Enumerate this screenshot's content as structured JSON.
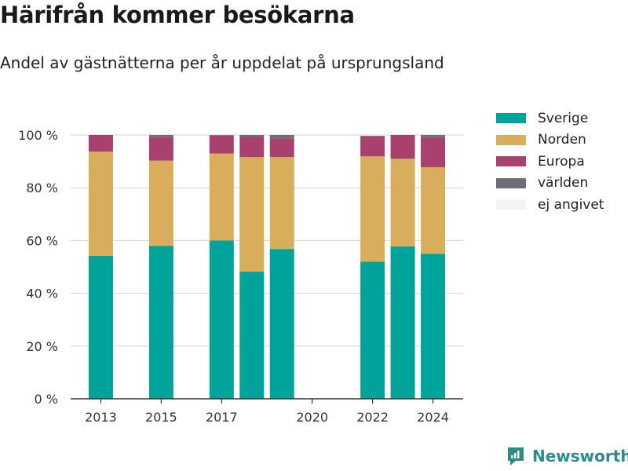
{
  "title": "Härifrån kommer besökarna",
  "subtitle": "Andel av gästnätterna per år uppdelat på ursprungsland",
  "brand": {
    "label": "Newsworthy",
    "icon": "newsworthy-logo-icon"
  },
  "chart_data": {
    "type": "bar",
    "stacked": true,
    "categories": [
      "2013",
      "2015",
      "2017",
      "2018",
      "2019",
      "2022",
      "2023",
      "2024"
    ],
    "x_ticks": [
      "2013",
      "2015",
      "2017",
      "2020",
      "2022",
      "2024"
    ],
    "xlim": [
      2012,
      2025
    ],
    "ylim": [
      0,
      100
    ],
    "y_ticks": [
      "0 %",
      "20 %",
      "40 %",
      "60 %",
      "80 %",
      "100 %"
    ],
    "grid": true,
    "legend_position": "top-right",
    "xlabel": "",
    "ylabel": "",
    "series": [
      {
        "name": "Sverige",
        "color": "#00a39a",
        "values": [
          54.2,
          58.0,
          60.0,
          48.2,
          56.8,
          52.0,
          57.8,
          55.0
        ]
      },
      {
        "name": "Norden",
        "color": "#d8ae5c",
        "values": [
          39.5,
          32.3,
          33.0,
          43.4,
          34.8,
          39.9,
          33.2,
          32.8
        ]
      },
      {
        "name": "Europa",
        "color": "#a8416b",
        "values": [
          6.3,
          8.9,
          6.8,
          7.8,
          7.1,
          7.6,
          9.0,
          11.4
        ]
      },
      {
        "name": "världen",
        "color": "#6e6e76",
        "values": [
          0.0,
          0.8,
          0.2,
          0.6,
          1.3,
          0.2,
          0.0,
          0.8
        ]
      },
      {
        "name": "ej angivet",
        "color": "#f3f3f3",
        "values": [
          0,
          0,
          0,
          0,
          0,
          0,
          0,
          0
        ]
      }
    ]
  }
}
